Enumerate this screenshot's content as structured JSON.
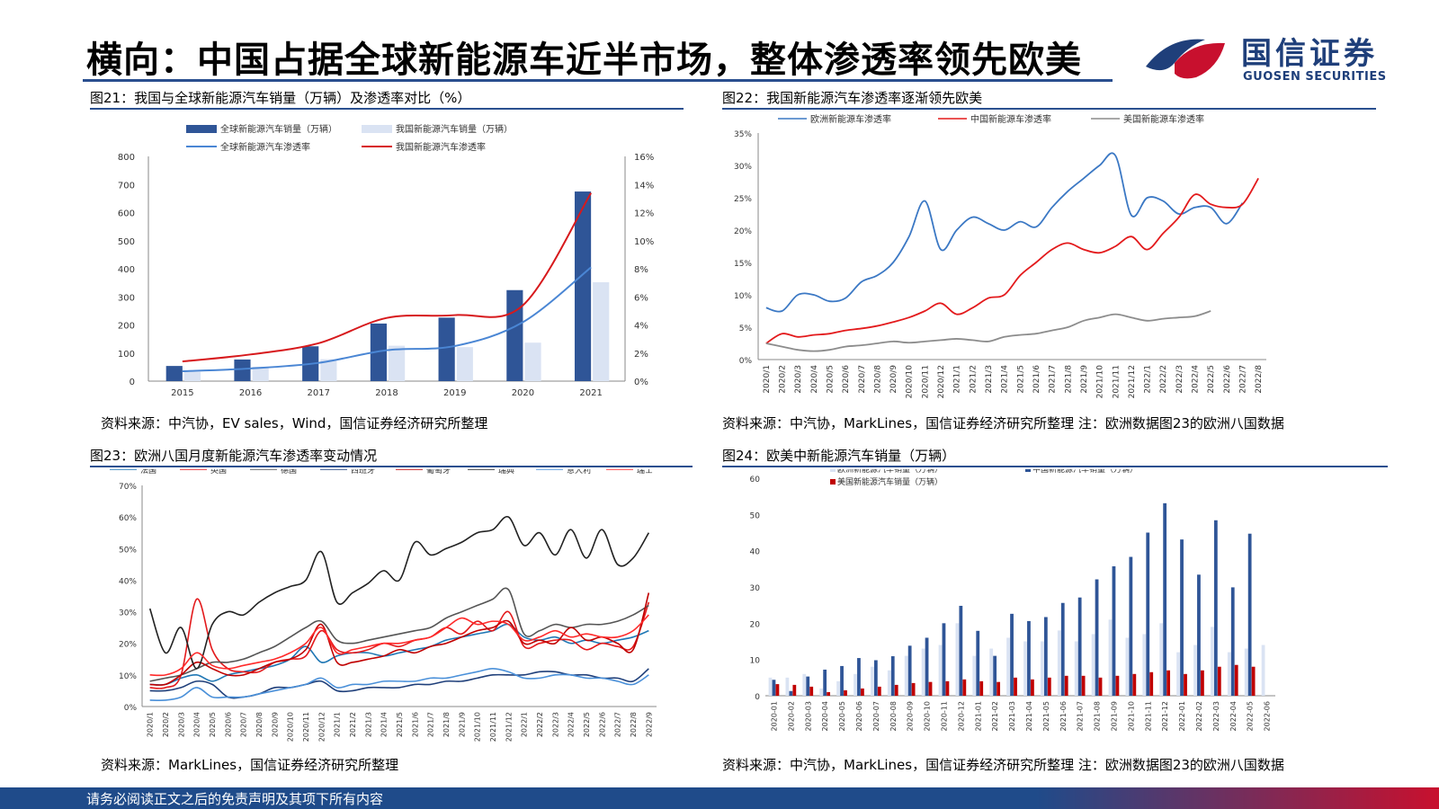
{
  "header": {
    "title": "横向：中国占据全球新能源车近半市场，整体渗透率领先欧美",
    "logo_cn": "国信证券",
    "logo_en": "GUOSEN SECURITIES",
    "brand_blue": "#1f3f7a",
    "brand_red": "#c8102e"
  },
  "footer": {
    "text": "请务必阅读正文之后的免责声明及其项下所有内容"
  },
  "panels": {
    "p1": {
      "title": "图21：我国与全球新能源汽车销量（万辆）及渗透率对比（%）",
      "source": "资料来源：中汽协，EV sales，Wind，国信证券经济研究所整理"
    },
    "p2": {
      "title": "图22：我国新能源汽车渗透率逐渐领先欧美",
      "source": "资料来源：中汽协，MarkLines，国信证券经济研究所整理   注：欧洲数据图23的欧洲八国数据"
    },
    "p3": {
      "title": "图23：欧洲八国月度新能源汽车渗透率变动情况",
      "source": "资料来源：MarkLines，国信证券经济研究所整理"
    },
    "p4": {
      "title": "图24：欧美中新能源汽车销量（万辆）",
      "source": "资料来源：中汽协，MarkLines，国信证券经济研究所整理 注：欧洲数据图23的欧洲八国数据"
    }
  },
  "chart_data": [
    {
      "type": "bar",
      "categories": [
        "2015",
        "2016",
        "2017",
        "2018",
        "2019",
        "2020",
        "2021"
      ],
      "series": [
        {
          "name": "全球新能源汽车销量（万辆）",
          "kind": "bar",
          "axis": "left",
          "color": "#2f5597",
          "values": [
            54,
            77,
            124,
            205,
            226,
            324,
            675
          ]
        },
        {
          "name": "我国新能源汽车销量（万辆）",
          "kind": "bar",
          "axis": "left",
          "color": "#dae3f3",
          "values": [
            33,
            51,
            78,
            126,
            121,
            137,
            352
          ]
        },
        {
          "name": "全球新能源汽车渗透率",
          "kind": "line",
          "axis": "right",
          "color": "#4a86d4",
          "values": [
            0.7,
            0.9,
            1.3,
            2.2,
            2.5,
            4.2,
            8.1
          ]
        },
        {
          "name": "我国新能源汽车渗透率",
          "kind": "line",
          "axis": "right",
          "color": "#d7191c",
          "values": [
            1.4,
            1.9,
            2.7,
            4.5,
            4.7,
            5.4,
            13.4
          ]
        }
      ],
      "ylim": [
        0,
        800
      ],
      "yticks": [
        "0",
        "100",
        "200",
        "300",
        "400",
        "500",
        "600",
        "700",
        "800"
      ],
      "y2lim": [
        0,
        16
      ],
      "y2ticks": [
        "0%",
        "2%",
        "4%",
        "6%",
        "8%",
        "10%",
        "12%",
        "14%",
        "16%"
      ],
      "legend": "top"
    },
    {
      "type": "line",
      "categories": [
        "2020/1",
        "2020/2",
        "2020/3",
        "2020/4",
        "2020/5",
        "2020/6",
        "2020/7",
        "2020/8",
        "2020/9",
        "2020/10",
        "2020/11",
        "2020/12",
        "2021/1",
        "2021/2",
        "2021/3",
        "2021/4",
        "2021/5",
        "2021/6",
        "2021/7",
        "2021/8",
        "2021/9",
        "2021/10",
        "2021/11",
        "2021/12",
        "2022/1",
        "2022/2",
        "2022/3",
        "2022/4",
        "2022/5",
        "2022/6",
        "2022/7",
        "2022/8"
      ],
      "series": [
        {
          "name": "欧洲新能源车渗透率",
          "color": "#3b78c4",
          "values": [
            8,
            7.5,
            10,
            10,
            9,
            9.5,
            12,
            13,
            15,
            19,
            24.5,
            17,
            20,
            22,
            21,
            20,
            21.3,
            20.5,
            23.5,
            26,
            28,
            30,
            31.5,
            22.3,
            25,
            24.5,
            22.5,
            23.5,
            23.5,
            21,
            24.2,
            null
          ]
        },
        {
          "name": "中国新能源车渗透率",
          "color": "#e31a1c",
          "values": [
            2.5,
            4,
            3.5,
            3.8,
            4,
            4.5,
            4.8,
            5.2,
            5.8,
            6.5,
            7.5,
            8.7,
            7,
            8,
            9.5,
            10,
            13,
            15,
            17,
            18,
            17,
            16.5,
            17.5,
            19,
            17,
            19.5,
            22,
            25.5,
            24,
            23.5,
            24,
            28
          ]
        },
        {
          "name": "美国新能源车渗透率",
          "color": "#8c8c8c",
          "values": [
            2.5,
            2,
            1.5,
            1.3,
            1.5,
            2,
            2.2,
            2.5,
            2.8,
            2.6,
            2.8,
            3,
            3.2,
            3,
            2.8,
            3.5,
            3.8,
            4,
            4.5,
            5,
            6,
            6.5,
            7,
            6.5,
            6,
            6.3,
            6.5,
            6.7,
            7.5,
            null,
            null,
            null
          ]
        }
      ],
      "ylim": [
        0,
        35
      ],
      "yticks": [
        "0%",
        "5%",
        "10%",
        "15%",
        "20%",
        "25%",
        "30%",
        "35%"
      ],
      "legend": "top"
    },
    {
      "type": "line",
      "categories": [
        "2020/1",
        "2020/2",
        "2020/3",
        "2020/4",
        "2020/5",
        "2020/6",
        "2020/7",
        "2020/8",
        "2020/9",
        "2020/10",
        "2020/11",
        "2020/12",
        "2021/1",
        "2021/2",
        "2021/3",
        "2021/4",
        "2021/5",
        "2021/6",
        "2021/7",
        "2021/8",
        "2021/9",
        "2021/10",
        "2021/11",
        "2021/12",
        "2022/1",
        "2022/2",
        "2022/3",
        "2022/4",
        "2022/5",
        "2022/6",
        "2022/7",
        "2022/8",
        "2022/9"
      ],
      "series": [
        {
          "name": "法国",
          "color": "#1f77b4",
          "values": [
            7,
            7,
            9,
            10,
            8,
            10,
            11,
            12,
            13,
            15,
            19,
            14,
            16,
            17,
            17,
            16,
            17,
            18,
            19,
            21,
            22,
            23,
            24,
            26,
            22,
            21,
            22,
            20,
            21,
            20,
            21,
            22,
            24
          ]
        },
        {
          "name": "英国",
          "color": "#e31a1c",
          "values": [
            6,
            6,
            10,
            34,
            18,
            12,
            11,
            11,
            14,
            15,
            16,
            24,
            18,
            17,
            18,
            20,
            19,
            21,
            22,
            25,
            23,
            27,
            24,
            30,
            19,
            20,
            21,
            21,
            18,
            20,
            19,
            19,
            33
          ]
        },
        {
          "name": "德国",
          "color": "#555555",
          "values": [
            8,
            9,
            10,
            12,
            14,
            14,
            15,
            17,
            19,
            22,
            25,
            27,
            21,
            20,
            21,
            22,
            23,
            24,
            25,
            28,
            30,
            32,
            34,
            37,
            23,
            24,
            26,
            25,
            26,
            26,
            27,
            29,
            32
          ]
        },
        {
          "name": "西班牙",
          "color": "#1f3f7a",
          "values": [
            5,
            5,
            6,
            8,
            7,
            3,
            3,
            4,
            6,
            6,
            7,
            8,
            5,
            5,
            6,
            6,
            6,
            7,
            7,
            8,
            8,
            9,
            10,
            10,
            10,
            11,
            11,
            10,
            10,
            9,
            9,
            8,
            12
          ]
        },
        {
          "name": "葡萄牙",
          "color": "#c00000",
          "values": [
            7,
            7,
            10,
            14,
            12,
            10,
            10,
            12,
            14,
            15,
            18,
            26,
            14,
            14,
            15,
            16,
            18,
            17,
            19,
            20,
            22,
            24,
            25,
            27,
            20,
            21,
            20,
            25,
            21,
            22,
            20,
            18,
            36
          ]
        },
        {
          "name": "瑞典",
          "color": "#222222",
          "values": [
            31,
            17,
            25,
            12,
            26,
            30,
            29,
            33,
            36,
            38,
            40,
            49,
            33,
            36,
            39,
            43,
            40,
            52,
            48,
            50,
            52,
            55,
            56,
            60,
            51,
            55,
            48,
            56,
            47,
            56,
            45,
            47,
            55
          ]
        },
        {
          "name": "意大利",
          "color": "#4a90d9",
          "values": [
            2,
            2,
            3,
            6,
            3,
            3,
            3,
            4,
            5,
            6,
            7,
            9,
            6,
            7,
            7,
            8,
            8,
            8,
            9,
            9,
            10,
            11,
            12,
            11,
            9,
            9,
            10,
            10,
            9,
            9,
            8,
            7,
            10
          ]
        },
        {
          "name": "瑞士",
          "color": "#ff2a2a",
          "values": [
            10,
            10,
            12,
            17,
            13,
            12,
            13,
            14,
            15,
            17,
            20,
            25,
            17,
            18,
            19,
            20,
            20,
            21,
            22,
            25,
            28,
            26,
            27,
            26,
            21,
            22,
            24,
            22,
            23,
            22,
            22,
            24,
            29
          ]
        }
      ],
      "ylim": [
        0,
        70
      ],
      "yticks": [
        "0%",
        "10%",
        "20%",
        "30%",
        "40%",
        "50%",
        "60%",
        "70%"
      ],
      "legend": "top"
    },
    {
      "type": "bar",
      "categories": [
        "2020-01",
        "2020-02",
        "2020-03",
        "2020-04",
        "2020-05",
        "2020-06",
        "2020-07",
        "2020-08",
        "2020-09",
        "2020-10",
        "2020-11",
        "2020-12",
        "2021-01",
        "2021-02",
        "2021-03",
        "2021-04",
        "2021-05",
        "2021-06",
        "2021-07",
        "2021-08",
        "2021-09",
        "2021-10",
        "2021-11",
        "2021-12",
        "2022-01",
        "2022-02",
        "2022-03",
        "2022-04",
        "2022-05",
        "2022-06"
      ],
      "series": [
        {
          "name": "欧洲新能源汽车销量（万辆）",
          "color": "#dae3f3",
          "values": [
            5,
            5,
            6,
            2,
            4,
            6,
            8,
            7,
            11,
            13,
            14,
            20,
            11,
            13,
            16,
            15,
            15,
            18,
            15,
            17,
            21,
            16,
            17,
            20,
            12,
            14,
            19,
            12,
            13,
            14
          ]
        },
        {
          "name": "中国新能源汽车销量（万辆）",
          "color": "#2f5597",
          "values": [
            4.4,
            1.3,
            5.3,
            7.2,
            8.2,
            10.4,
            9.8,
            10.9,
            13.8,
            16,
            20,
            24.8,
            17.9,
            11,
            22.6,
            20.6,
            21.7,
            25.6,
            27.1,
            32.1,
            35.7,
            38.3,
            45,
            53.1,
            43.1,
            33.4,
            48.4,
            29.9,
            44.7,
            null
          ]
        },
        {
          "name": "美国新能源汽车销量（万辆）",
          "color": "#c00000",
          "values": [
            3.2,
            3,
            2.5,
            1,
            1.5,
            2,
            2.5,
            3,
            3.5,
            3.8,
            4,
            4.5,
            4,
            3.8,
            5,
            4.5,
            5,
            5.5,
            5.5,
            5,
            5.5,
            6,
            6.5,
            7,
            6,
            7,
            8,
            8.5,
            8,
            null
          ]
        }
      ],
      "ylim": [
        0,
        60
      ],
      "yticks": [
        "0",
        "10",
        "20",
        "30",
        "40",
        "50",
        "60"
      ],
      "legend": "top"
    }
  ]
}
